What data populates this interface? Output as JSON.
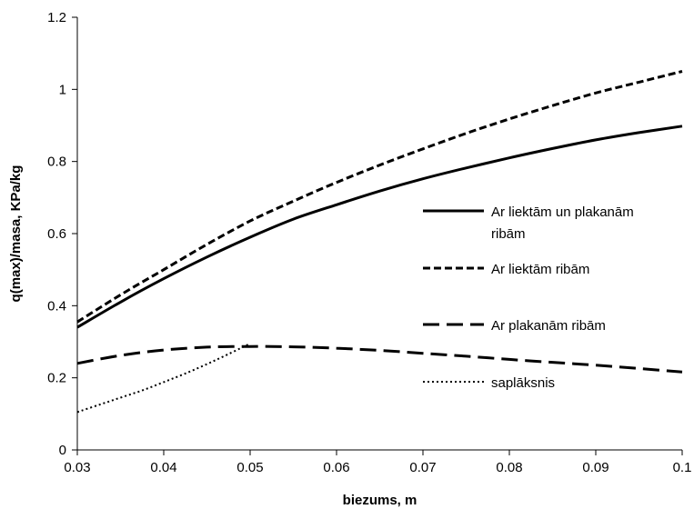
{
  "chart_data": {
    "type": "line",
    "title": "",
    "xlabel": "biezums, m",
    "ylabel": "q(max)/masa, KPa/kg",
    "xlim": [
      0.03,
      0.1
    ],
    "ylim": [
      0,
      1.2
    ],
    "xticks": [
      0.03,
      0.04,
      0.05,
      0.06,
      0.07,
      0.08,
      0.09,
      0.1
    ],
    "yticks": [
      0,
      0.2,
      0.4,
      0.6,
      0.8,
      1,
      1.2
    ],
    "xtick_labels": [
      "0.03",
      "0.04",
      "0.05",
      "0.06",
      "0.07",
      "0.08",
      "0.09",
      "0.1"
    ],
    "ytick_labels": [
      "0",
      "0.2",
      "0.4",
      "0.6",
      "0.8",
      "1",
      "1.2"
    ],
    "grid": false,
    "legend_position": "right",
    "series": [
      {
        "name": "Ar liektām un plakanām ribām",
        "name_lines": [
          "Ar liektām un plakanām",
          "ribām"
        ],
        "style": "solid",
        "color": "#000000",
        "x": [
          0.03,
          0.035,
          0.04,
          0.045,
          0.05,
          0.055,
          0.06,
          0.065,
          0.07,
          0.075,
          0.08,
          0.085,
          0.09,
          0.095,
          0.1
        ],
        "y": [
          0.34,
          0.41,
          0.475,
          0.535,
          0.59,
          0.64,
          0.68,
          0.718,
          0.752,
          0.782,
          0.81,
          0.836,
          0.86,
          0.88,
          0.898
        ]
      },
      {
        "name": "Ar liektām ribām",
        "name_lines": [
          "Ar liektām ribām"
        ],
        "style": "short-dash",
        "color": "#000000",
        "x": [
          0.03,
          0.035,
          0.04,
          0.045,
          0.05,
          0.055,
          0.06,
          0.065,
          0.07,
          0.075,
          0.08,
          0.085,
          0.09,
          0.095,
          0.1
        ],
        "y": [
          0.355,
          0.43,
          0.5,
          0.57,
          0.635,
          0.69,
          0.742,
          0.79,
          0.835,
          0.878,
          0.918,
          0.955,
          0.99,
          1.02,
          1.05
        ]
      },
      {
        "name": "Ar plakanām ribām",
        "name_lines": [
          "Ar plakanām ribām"
        ],
        "style": "long-dash",
        "color": "#000000",
        "x": [
          0.03,
          0.035,
          0.04,
          0.045,
          0.05,
          0.055,
          0.06,
          0.065,
          0.07,
          0.075,
          0.08,
          0.085,
          0.09,
          0.095,
          0.1
        ],
        "y": [
          0.24,
          0.262,
          0.277,
          0.285,
          0.287,
          0.286,
          0.282,
          0.276,
          0.268,
          0.26,
          0.251,
          0.243,
          0.235,
          0.226,
          0.216
        ]
      },
      {
        "name": "saplāksnis",
        "name_lines": [
          "saplāksnis"
        ],
        "style": "dotted",
        "color": "#000000",
        "x": [
          0.03,
          0.0325,
          0.035,
          0.0375,
          0.04,
          0.0425,
          0.045,
          0.0475,
          0.05
        ],
        "y": [
          0.105,
          0.125,
          0.145,
          0.165,
          0.188,
          0.212,
          0.238,
          0.266,
          0.295
        ]
      }
    ]
  }
}
